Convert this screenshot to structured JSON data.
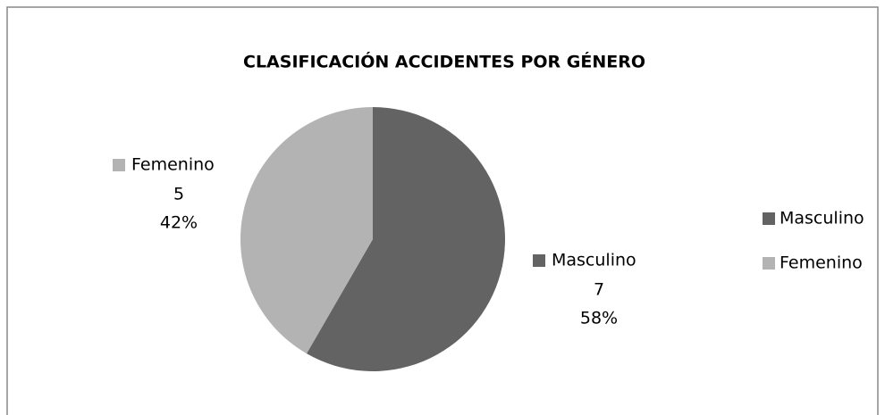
{
  "chart_data": {
    "type": "pie",
    "title": "CLASIFICACIÓN ACCIDENTES POR GÉNERO",
    "categories": [
      "Masculino",
      "Femenino"
    ],
    "values": [
      7,
      5
    ],
    "percent_labels": [
      "58%",
      "42%"
    ],
    "colors": [
      "#636363",
      "#b3b3b3"
    ],
    "legend": "right"
  }
}
